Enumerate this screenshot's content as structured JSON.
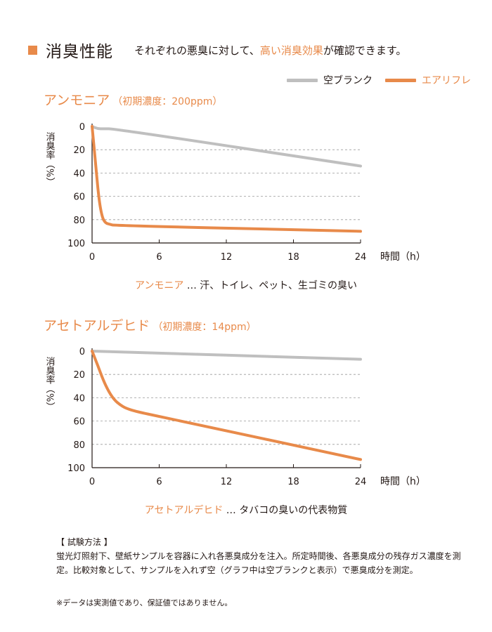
{
  "header": {
    "title": "消臭性能",
    "desc_pre": "それぞれの悪臭に対して、",
    "desc_accent": "高い消臭効果",
    "desc_post": "が確認できます。"
  },
  "legend": [
    {
      "label": "空ブランク",
      "color": "#bfbfbf"
    },
    {
      "label": "エアリフレ",
      "color": "#e88a4a"
    }
  ],
  "charts": [
    {
      "title": "アンモニア",
      "subtitle": "（初期濃度：200ppm）",
      "caption_accent": "アンモニア",
      "caption_rest": " … 汗、トイレ、ペット、生ゴミの臭い"
    },
    {
      "title": "アセトアルデヒド",
      "subtitle": "（初期濃度：14ppm）",
      "caption_accent": "アセトアルデヒド",
      "caption_rest": " … タバコの臭いの代表物質"
    }
  ],
  "chart_data": [
    {
      "type": "line",
      "title": "アンモニア（初期濃度：200ppm）",
      "xlabel": "時間（h）",
      "ylabel": "消臭率（%）",
      "x_ticks": [
        "0",
        "6",
        "12",
        "18",
        "24"
      ],
      "y_ticks": [
        "0",
        "20",
        "40",
        "60",
        "80",
        "100"
      ],
      "xlim": [
        0,
        24
      ],
      "ylim": [
        0,
        100
      ],
      "y_inverted": true,
      "grid": "horizontal-dashed",
      "series": [
        {
          "name": "空ブランク",
          "color": "#bfbfbf",
          "x": [
            0,
            0.5,
            1,
            2,
            24
          ],
          "y": [
            0,
            2,
            2,
            2,
            34
          ]
        },
        {
          "name": "エアリフレ",
          "color": "#e88a4a",
          "x": [
            0,
            0.3,
            0.6,
            0.9,
            1.2,
            1.6,
            2,
            24
          ],
          "y": [
            0,
            30,
            62,
            78,
            83,
            84,
            85,
            90
          ]
        }
      ]
    },
    {
      "type": "line",
      "title": "アセトアルデヒド（初期濃度：14ppm）",
      "xlabel": "時間（h）",
      "ylabel": "消臭率（%）",
      "x_ticks": [
        "0",
        "6",
        "12",
        "18",
        "24"
      ],
      "y_ticks": [
        "0",
        "20",
        "40",
        "60",
        "80",
        "100"
      ],
      "xlim": [
        0,
        24
      ],
      "ylim": [
        0,
        100
      ],
      "y_inverted": true,
      "grid": "horizontal-dashed",
      "series": [
        {
          "name": "空ブランク",
          "color": "#bfbfbf",
          "x": [
            0,
            24
          ],
          "y": [
            0,
            7
          ]
        },
        {
          "name": "エアリフレ",
          "color": "#e88a4a",
          "x": [
            0,
            0.5,
            1,
            1.5,
            2,
            2.5,
            3,
            4,
            6,
            24
          ],
          "y": [
            0,
            12,
            25,
            35,
            42,
            46,
            49,
            52,
            56,
            93
          ]
        }
      ]
    }
  ],
  "method": {
    "heading": "【 試験方法 】",
    "body": "蛍光灯照射下、壁紙サンプルを容器に入れ各悪臭成分を注入。所定時間後、各悪臭成分の残存ガス濃度を測定。比較対象として、サンプルを入れず空（グラフ中は空ブランクと表示）で悪臭成分を測定。"
  },
  "note": "※データは実測値であり、保証値ではありません。"
}
